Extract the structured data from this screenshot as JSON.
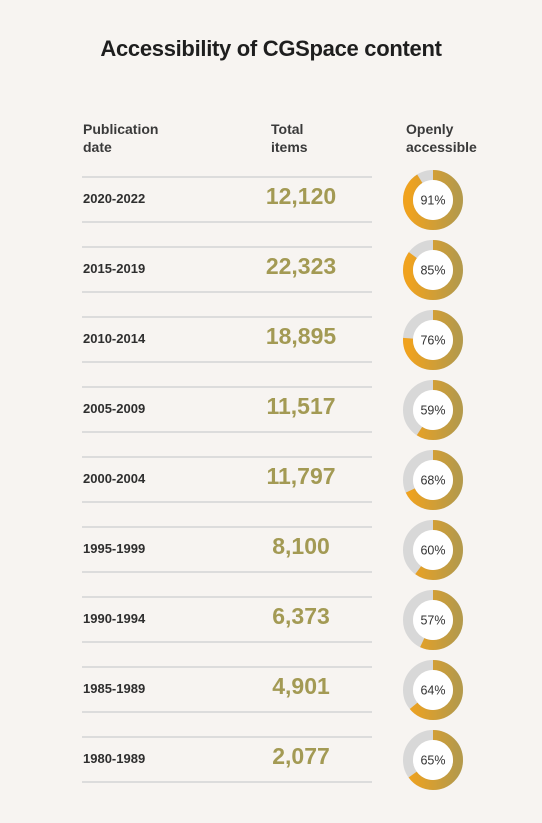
{
  "title": "Accessibility of CGSpace content",
  "headers": {
    "date": "Publication\ndate",
    "total": "Total\nitems",
    "open": "Openly\naccessible"
  },
  "colors": {
    "total_text": "#a39a54",
    "ring_track": "#d8d8d8",
    "ring_fill_start": "#f0a21e",
    "ring_fill_end": "#b59a4b"
  },
  "chart_data": {
    "type": "table",
    "title": "Accessibility of CGSpace content",
    "columns": [
      "Publication date",
      "Total items",
      "Openly accessible"
    ],
    "rows": [
      {
        "date": "2020-2022",
        "total": "12,120",
        "open_pct": 91,
        "open_label": "91%"
      },
      {
        "date": "2015-2019",
        "total": "22,323",
        "open_pct": 85,
        "open_label": "85%"
      },
      {
        "date": "2010-2014",
        "total": "18,895",
        "open_pct": 76,
        "open_label": "76%"
      },
      {
        "date": "2005-2009",
        "total": "11,517",
        "open_pct": 59,
        "open_label": "59%"
      },
      {
        "date": "2000-2004",
        "total": "11,797",
        "open_pct": 68,
        "open_label": "68%"
      },
      {
        "date": "1995-1999",
        "total": "8,100",
        "open_pct": 60,
        "open_label": "60%"
      },
      {
        "date": "1990-1994",
        "total": "6,373",
        "open_pct": 57,
        "open_label": "57%"
      },
      {
        "date": "1985-1989",
        "total": "4,901",
        "open_pct": 64,
        "open_label": "64%"
      },
      {
        "date": "1980-1989",
        "total": "2,077",
        "open_pct": 65,
        "open_label": "65%"
      }
    ]
  }
}
